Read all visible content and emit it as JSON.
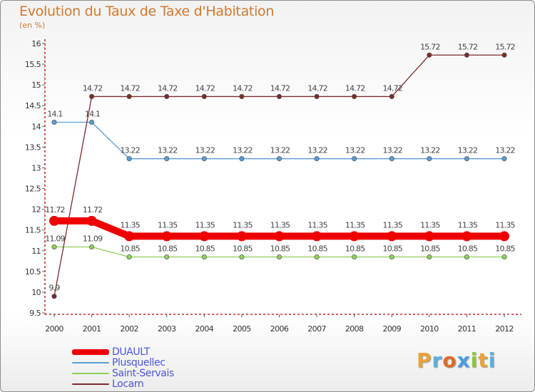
{
  "title": "Evolution du Taux de Taxe d'Habitation",
  "unit": "(en %)",
  "brand": "Proxiti",
  "colors": {
    "title": "#d0782e",
    "dualt": "#ee0000",
    "plusquellec": "#5b9bd5",
    "saint_servais": "#8ed05a",
    "locarn": "#7a2a2a",
    "legend_text": "#4b55d6"
  },
  "chart_data": {
    "type": "line",
    "title": "Evolution du Taux de Taxe d'Habitation",
    "ylabel": "(en %)",
    "xlabel": "",
    "ylim": [
      9.5,
      16
    ],
    "yticks": [
      "9.5",
      "10",
      "10.5",
      "11",
      "11.5",
      "12",
      "12.5",
      "13",
      "13.5",
      "14",
      "14.5",
      "15",
      "15.5",
      "16"
    ],
    "categories": [
      "2000",
      "2001",
      "2002",
      "2003",
      "2004",
      "2005",
      "2006",
      "2007",
      "2008",
      "2009",
      "2010",
      "2011",
      "2012"
    ],
    "series": [
      {
        "name": "DUAULT",
        "color": "#ee0000",
        "values": [
          11.72,
          11.72,
          11.35,
          11.35,
          11.35,
          11.35,
          11.35,
          11.35,
          11.35,
          11.35,
          11.35,
          11.35,
          11.35
        ],
        "labels": [
          "11.72",
          "11.72",
          "11.35",
          "11.35",
          "11.35",
          "11.35",
          "11.35",
          "11.35",
          "11.35",
          "11.35",
          "11.35",
          "11.35",
          "11.35"
        ]
      },
      {
        "name": "Plusquellec",
        "color": "#5b9bd5",
        "values": [
          14.1,
          14.1,
          13.22,
          13.22,
          13.22,
          13.22,
          13.22,
          13.22,
          13.22,
          13.22,
          13.22,
          13.22,
          13.22
        ],
        "labels": [
          "14.1",
          "14.1",
          "13.22",
          "13.22",
          "13.22",
          "13.22",
          "13.22",
          "13.22",
          "13.22",
          "13.22",
          "13.22",
          "13.22",
          "13.22"
        ]
      },
      {
        "name": "Saint-Servais",
        "color": "#8ed05a",
        "values": [
          11.09,
          11.09,
          10.85,
          10.85,
          10.85,
          10.85,
          10.85,
          10.85,
          10.85,
          10.85,
          10.85,
          10.85,
          10.85
        ],
        "labels": [
          "11.09",
          "11.09",
          "10.85",
          "10.85",
          "10.85",
          "10.85",
          "10.85",
          "10.85",
          "10.85",
          "10.85",
          "10.85",
          "10.85",
          "10.85"
        ]
      },
      {
        "name": "Locarn",
        "color": "#7a2a2a",
        "values": [
          9.9,
          14.72,
          14.72,
          14.72,
          14.72,
          14.72,
          14.72,
          14.72,
          14.72,
          14.72,
          15.72,
          15.72,
          15.72
        ],
        "labels": [
          "9.9",
          "14.72",
          "14.72",
          "14.72",
          "14.72",
          "14.72",
          "14.72",
          "14.72",
          "14.72",
          "14.72",
          "15.72",
          "15.72",
          "15.72"
        ]
      }
    ],
    "legend": [
      "DUAULT",
      "Plusquellec",
      "Saint-Servais",
      "Locarn"
    ],
    "legend_position": "bottom-left",
    "grid": false
  }
}
